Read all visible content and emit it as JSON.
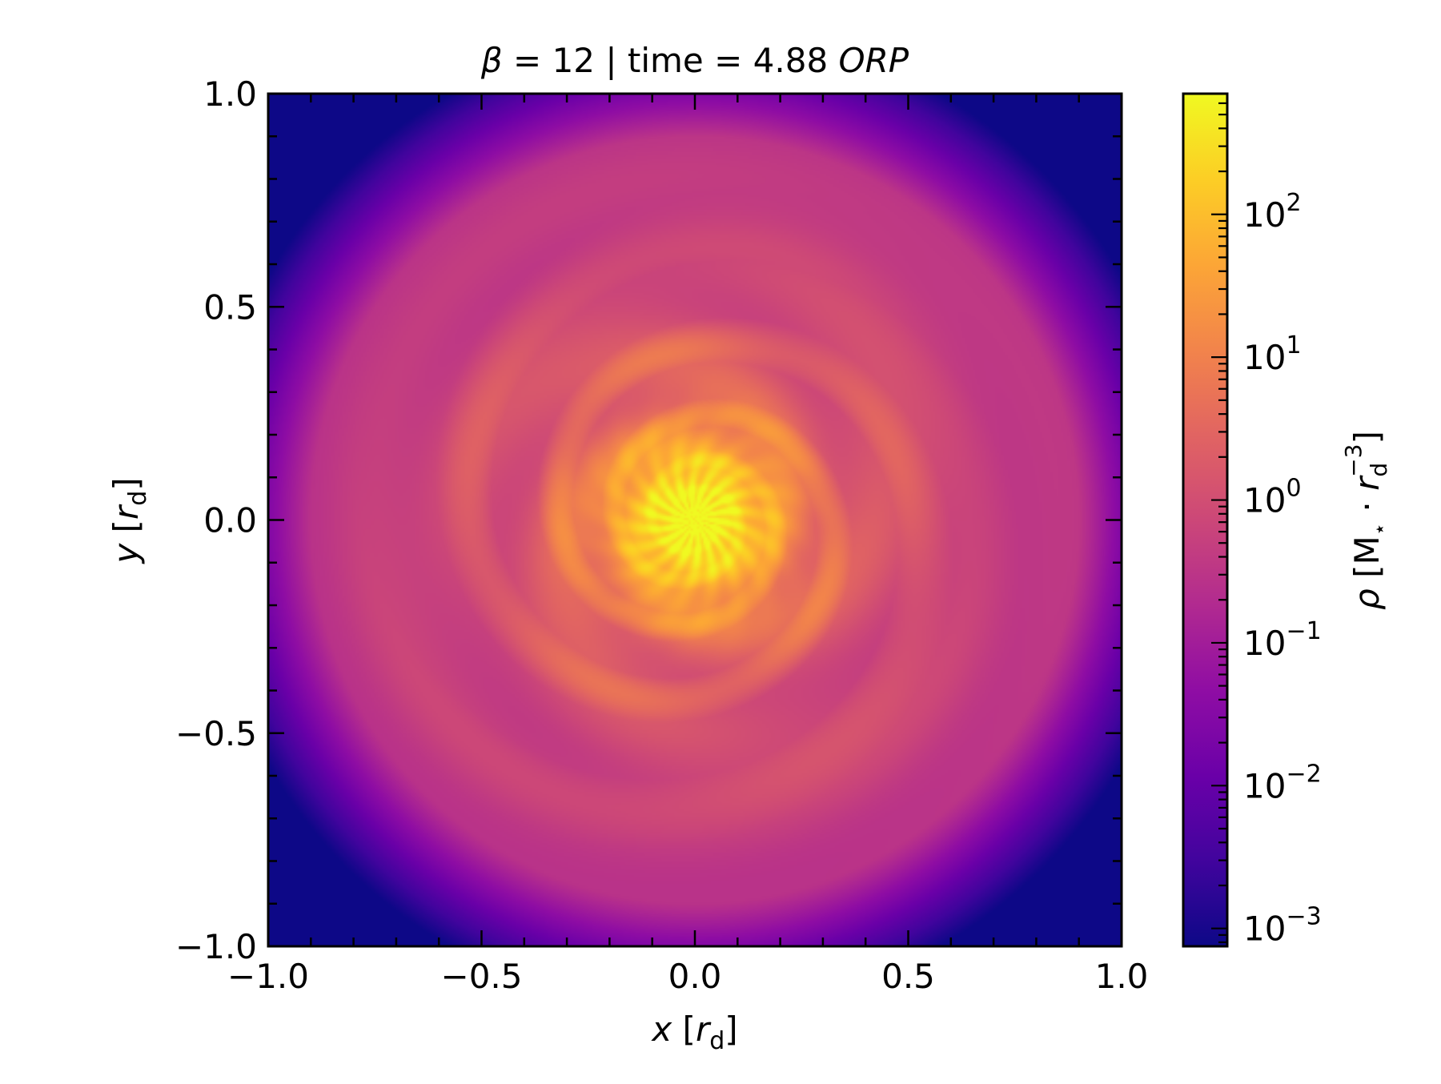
{
  "chart_data": {
    "type": "heatmap",
    "title": {
      "parts": [
        {
          "text": "β",
          "italic": true
        },
        {
          "text": " = 12 | time = 4.88 ",
          "italic": false
        },
        {
          "text": "ORP",
          "italic": true
        }
      ]
    },
    "xlabel": {
      "var": "x",
      "unit_var": "r",
      "unit_sub": "d"
    },
    "ylabel": {
      "var": "y",
      "unit_var": "r",
      "unit_sub": "d"
    },
    "xlim": [
      -1.0,
      1.0
    ],
    "ylim": [
      -1.0,
      1.0
    ],
    "x_ticks": [
      -1.0,
      -0.5,
      0.0,
      0.5,
      1.0
    ],
    "x_tick_labels": [
      "−1.0",
      "−0.5",
      "0.0",
      "0.5",
      "1.0"
    ],
    "y_ticks": [
      -1.0,
      -0.5,
      0.0,
      0.5,
      1.0
    ],
    "y_tick_labels": [
      "−1.0",
      "−0.5",
      "0.0",
      "0.5",
      "1.0"
    ],
    "minor_tick_step": 0.1,
    "colormap": "plasma",
    "colorbar": {
      "scale": "log",
      "range": [
        0.00075,
        700
      ],
      "tick_exponents": [
        -3,
        -2,
        -1,
        0,
        1,
        2
      ],
      "tick_base": "10",
      "tick_exponent_labels": [
        "−3",
        "−2",
        "−1",
        "0",
        "1",
        "2"
      ],
      "label": {
        "var": "ρ",
        "units": "M",
        "units_sub": "⋆",
        "dot": "·",
        "r_var": "r",
        "r_sub": "d",
        "r_sup": "−3"
      }
    },
    "field_description_values": {
      "center_peak": 700,
      "core_radius": 0.22,
      "disk_outer_radius": 0.95,
      "edge_min": 0.00075
    }
  }
}
